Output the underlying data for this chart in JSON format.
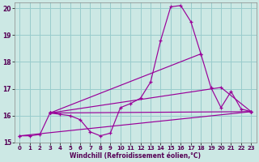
{
  "xlabel": "Windchill (Refroidissement éolien,°C)",
  "xlim": [
    -0.5,
    23.5
  ],
  "ylim": [
    15.0,
    20.2
  ],
  "yticks": [
    15,
    16,
    17,
    18,
    19,
    20
  ],
  "xticks": [
    0,
    1,
    2,
    3,
    4,
    5,
    6,
    7,
    8,
    9,
    10,
    11,
    12,
    13,
    14,
    15,
    16,
    17,
    18,
    19,
    20,
    21,
    22,
    23
  ],
  "background_color": "#cce8e4",
  "grid_color": "#99cccc",
  "line_color": "#990099",
  "series": [
    {
      "x": [
        0,
        1,
        2,
        3,
        4,
        5,
        6,
        7,
        8,
        9,
        10,
        11,
        12,
        13,
        14,
        15,
        16,
        17,
        18,
        19,
        20,
        21,
        22,
        23
      ],
      "y": [
        15.25,
        15.25,
        15.3,
        16.1,
        16.05,
        16.0,
        15.85,
        15.4,
        15.25,
        15.35,
        16.3,
        16.45,
        16.65,
        17.25,
        18.8,
        20.05,
        20.1,
        19.5,
        18.3,
        17.05,
        16.3,
        16.9,
        16.25,
        16.15
      ]
    },
    {
      "x": [
        0,
        23
      ],
      "y": [
        15.25,
        16.15
      ]
    },
    {
      "x": [
        3,
        23
      ],
      "y": [
        16.1,
        16.15
      ]
    },
    {
      "comment": "line from x=3 y=16.1 to x=18 y=18.3 (steeper)",
      "x": [
        3,
        18
      ],
      "y": [
        16.1,
        18.3
      ]
    },
    {
      "x": [
        3,
        20,
        23
      ],
      "y": [
        16.1,
        17.05,
        16.15
      ]
    }
  ]
}
